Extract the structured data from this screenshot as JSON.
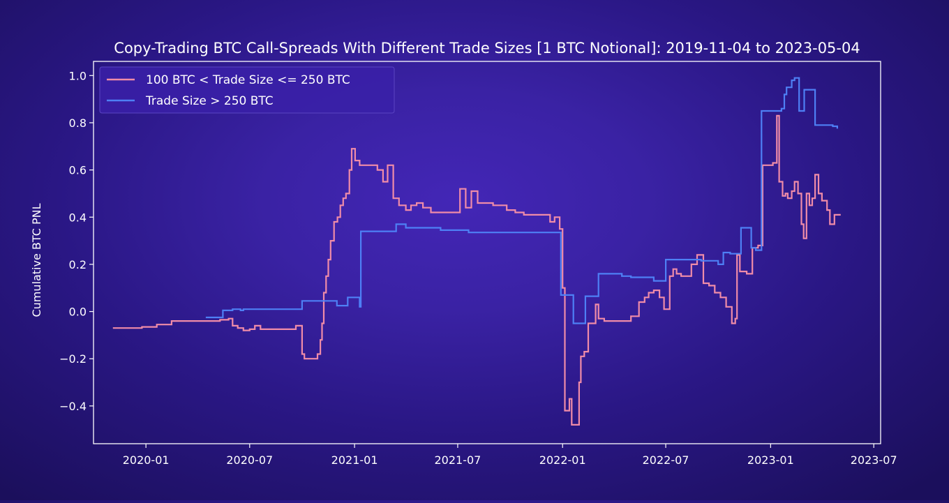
{
  "chart_data": {
    "type": "line",
    "title": "Copy-Trading BTC Call-Spreads With Different Trade Sizes [1 BTC Notional]: 2019-11-04 to 2023-05-04",
    "xlabel": "",
    "ylabel": "Cumulative BTC PNL",
    "xlim": [
      "2019-10-01",
      "2023-07-13"
    ],
    "ylim": [
      -0.56,
      1.06
    ],
    "x_ticks": [
      "2020-01",
      "2020-07",
      "2021-01",
      "2021-07",
      "2022-01",
      "2022-07",
      "2023-01",
      "2023-07"
    ],
    "y_ticks": [
      "1.0",
      "0.8",
      "0.6",
      "0.4",
      "0.2",
      "0.0",
      "−0.2",
      "−0.4"
    ],
    "y_tick_values": [
      1.0,
      0.8,
      0.6,
      0.4,
      0.2,
      0.0,
      -0.2,
      -0.4
    ],
    "grid": false,
    "legend_position": "top-left",
    "series": [
      {
        "name": "100 BTC < Trade Size <= 250 BTC",
        "color": "#f08ca8",
        "step": true,
        "points": [
          [
            "2019-11-04",
            -0.07
          ],
          [
            "2019-12-25",
            -0.065
          ],
          [
            "2020-01-20",
            -0.055
          ],
          [
            "2020-02-15",
            -0.04
          ],
          [
            "2020-05-10",
            -0.035
          ],
          [
            "2020-05-25",
            -0.03
          ],
          [
            "2020-06-01",
            -0.06
          ],
          [
            "2020-06-10",
            -0.07
          ],
          [
            "2020-06-20",
            -0.08
          ],
          [
            "2020-07-01",
            -0.075
          ],
          [
            "2020-07-10",
            -0.06
          ],
          [
            "2020-07-20",
            -0.075
          ],
          [
            "2020-09-20",
            -0.06
          ],
          [
            "2020-10-01",
            -0.18
          ],
          [
            "2020-10-05",
            -0.2
          ],
          [
            "2020-10-20",
            -0.2
          ],
          [
            "2020-10-28",
            -0.18
          ],
          [
            "2020-11-02",
            -0.12
          ],
          [
            "2020-11-05",
            -0.05
          ],
          [
            "2020-11-08",
            0.08
          ],
          [
            "2020-11-12",
            0.15
          ],
          [
            "2020-11-16",
            0.22
          ],
          [
            "2020-11-20",
            0.3
          ],
          [
            "2020-11-26",
            0.38
          ],
          [
            "2020-12-02",
            0.4
          ],
          [
            "2020-12-07",
            0.45
          ],
          [
            "2020-12-12",
            0.48
          ],
          [
            "2020-12-17",
            0.5
          ],
          [
            "2020-12-23",
            0.6
          ],
          [
            "2020-12-27",
            0.69
          ],
          [
            "2021-01-02",
            0.64
          ],
          [
            "2021-01-10",
            0.62
          ],
          [
            "2021-02-10",
            0.6
          ],
          [
            "2021-02-20",
            0.55
          ],
          [
            "2021-02-28",
            0.62
          ],
          [
            "2021-03-10",
            0.48
          ],
          [
            "2021-03-20",
            0.45
          ],
          [
            "2021-04-01",
            0.43
          ],
          [
            "2021-04-10",
            0.45
          ],
          [
            "2021-04-20",
            0.46
          ],
          [
            "2021-05-01",
            0.44
          ],
          [
            "2021-05-15",
            0.42
          ],
          [
            "2021-06-25",
            0.42
          ],
          [
            "2021-07-05",
            0.52
          ],
          [
            "2021-07-15",
            0.44
          ],
          [
            "2021-07-25",
            0.51
          ],
          [
            "2021-08-05",
            0.46
          ],
          [
            "2021-09-01",
            0.45
          ],
          [
            "2021-09-25",
            0.43
          ],
          [
            "2021-10-10",
            0.42
          ],
          [
            "2021-10-25",
            0.41
          ],
          [
            "2021-12-10",
            0.38
          ],
          [
            "2021-12-18",
            0.4
          ],
          [
            "2021-12-27",
            0.35
          ],
          [
            "2022-01-01",
            0.1
          ],
          [
            "2022-01-05",
            -0.42
          ],
          [
            "2022-01-13",
            -0.37
          ],
          [
            "2022-01-17",
            -0.48
          ],
          [
            "2022-01-30",
            -0.3
          ],
          [
            "2022-02-02",
            -0.19
          ],
          [
            "2022-02-08",
            -0.17
          ],
          [
            "2022-02-15",
            -0.05
          ],
          [
            "2022-02-28",
            0.03
          ],
          [
            "2022-03-05",
            -0.03
          ],
          [
            "2022-03-15",
            -0.04
          ],
          [
            "2022-05-01",
            -0.02
          ],
          [
            "2022-05-15",
            0.04
          ],
          [
            "2022-05-25",
            0.06
          ],
          [
            "2022-06-01",
            0.08
          ],
          [
            "2022-06-10",
            0.09
          ],
          [
            "2022-06-20",
            0.06
          ],
          [
            "2022-06-28",
            0.01
          ],
          [
            "2022-07-08",
            0.15
          ],
          [
            "2022-07-14",
            0.18
          ],
          [
            "2022-07-20",
            0.16
          ],
          [
            "2022-07-28",
            0.15
          ],
          [
            "2022-08-15",
            0.2
          ],
          [
            "2022-08-25",
            0.24
          ],
          [
            "2022-09-05",
            0.12
          ],
          [
            "2022-09-15",
            0.11
          ],
          [
            "2022-09-25",
            0.08
          ],
          [
            "2022-10-05",
            0.06
          ],
          [
            "2022-10-15",
            0.02
          ],
          [
            "2022-10-25",
            -0.05
          ],
          [
            "2022-10-31",
            -0.03
          ],
          [
            "2022-11-03",
            0.24
          ],
          [
            "2022-11-08",
            0.17
          ],
          [
            "2022-11-20",
            0.16
          ],
          [
            "2022-11-30",
            0.27
          ],
          [
            "2022-12-10",
            0.28
          ],
          [
            "2022-12-18",
            0.62
          ],
          [
            "2023-01-05",
            0.63
          ],
          [
            "2023-01-12",
            0.83
          ],
          [
            "2023-01-16",
            0.55
          ],
          [
            "2023-01-22",
            0.49
          ],
          [
            "2023-01-27",
            0.5
          ],
          [
            "2023-01-31",
            0.48
          ],
          [
            "2023-02-07",
            0.51
          ],
          [
            "2023-02-12",
            0.55
          ],
          [
            "2023-02-18",
            0.5
          ],
          [
            "2023-02-24",
            0.37
          ],
          [
            "2023-02-28",
            0.31
          ],
          [
            "2023-03-05",
            0.5
          ],
          [
            "2023-03-10",
            0.45
          ],
          [
            "2023-03-15",
            0.48
          ],
          [
            "2023-03-20",
            0.58
          ],
          [
            "2023-03-26",
            0.5
          ],
          [
            "2023-04-01",
            0.47
          ],
          [
            "2023-04-10",
            0.43
          ],
          [
            "2023-04-15",
            0.37
          ],
          [
            "2023-04-23",
            0.41
          ],
          [
            "2023-05-04",
            0.41
          ]
        ]
      },
      {
        "name": "Trade Size > 250 BTC",
        "color": "#4e80f5",
        "step": true,
        "points": [
          [
            "2020-04-15",
            -0.025
          ],
          [
            "2020-05-15",
            0.005
          ],
          [
            "2020-06-01",
            0.01
          ],
          [
            "2020-06-15",
            0.005
          ],
          [
            "2020-06-20",
            0.01
          ],
          [
            "2020-09-15",
            0.01
          ],
          [
            "2020-10-01",
            0.045
          ],
          [
            "2020-12-01",
            0.025
          ],
          [
            "2020-12-20",
            0.06
          ],
          [
            "2021-01-10",
            0.02
          ],
          [
            "2021-01-12",
            0.34
          ],
          [
            "2021-03-15",
            0.37
          ],
          [
            "2021-04-01",
            0.355
          ],
          [
            "2021-06-01",
            0.345
          ],
          [
            "2021-07-20",
            0.335
          ],
          [
            "2021-12-29",
            0.07
          ],
          [
            "2022-01-20",
            -0.05
          ],
          [
            "2022-02-10",
            0.065
          ],
          [
            "2022-03-05",
            0.16
          ],
          [
            "2022-04-15",
            0.15
          ],
          [
            "2022-05-01",
            0.145
          ],
          [
            "2022-06-10",
            0.13
          ],
          [
            "2022-07-01",
            0.22
          ],
          [
            "2022-07-08",
            0.22
          ],
          [
            "2022-09-01",
            0.215
          ],
          [
            "2022-10-01",
            0.2
          ],
          [
            "2022-10-10",
            0.25
          ],
          [
            "2022-10-22",
            0.245
          ],
          [
            "2022-11-10",
            0.355
          ],
          [
            "2022-11-28",
            0.27
          ],
          [
            "2022-12-06",
            0.26
          ],
          [
            "2022-12-16",
            0.85
          ],
          [
            "2023-01-20",
            0.86
          ],
          [
            "2023-01-25",
            0.92
          ],
          [
            "2023-01-29",
            0.95
          ],
          [
            "2023-02-07",
            0.98
          ],
          [
            "2023-02-12",
            0.99
          ],
          [
            "2023-02-20",
            0.85
          ],
          [
            "2023-03-01",
            0.94
          ],
          [
            "2023-03-20",
            0.79
          ],
          [
            "2023-04-10",
            0.79
          ],
          [
            "2023-04-20",
            0.785
          ],
          [
            "2023-04-28",
            0.775
          ]
        ]
      }
    ]
  }
}
